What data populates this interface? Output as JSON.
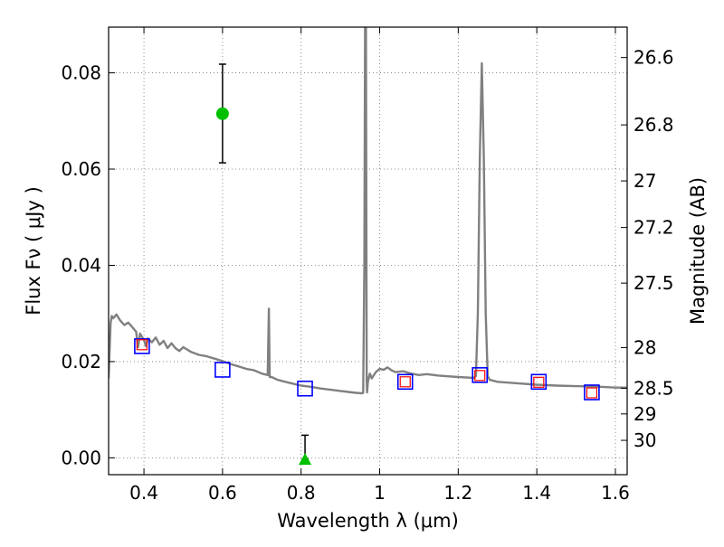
{
  "chart_data": {
    "type": "line",
    "title": "",
    "xlabel": "Wavelength  λ (μm)",
    "ylabel": "Flux  Fν  ( μJy )",
    "ylabel_right": "Magnitude (AB)",
    "xlim": [
      0.31,
      1.63
    ],
    "ylim": [
      -0.0035,
      0.0895
    ],
    "grid": true,
    "x_ticks": [
      0.4,
      0.6,
      0.8,
      1.0,
      1.2,
      1.4,
      1.6
    ],
    "x_tick_labels": [
      "0.4",
      "0.6",
      "0.8",
      "1",
      "1.2",
      "1.4",
      "1.6"
    ],
    "y_ticks": [
      0.0,
      0.02,
      0.04,
      0.06,
      0.08
    ],
    "y_tick_labels": [
      "0.00",
      "0.02",
      "0.04",
      "0.06",
      "0.08"
    ],
    "mag_ticks": [
      26.6,
      26.8,
      27.0,
      27.2,
      27.5,
      28.0,
      28.5,
      29.0,
      30.0
    ],
    "mag_tick_labels": [
      "26.6",
      "26.8",
      "27",
      "27.2",
      "27.5",
      "28",
      "28.5",
      "29",
      "30"
    ],
    "colors": {
      "model": "#808080",
      "model_points": "#0000ff",
      "observed_points": "#ff0000",
      "detection": "#00c000",
      "grid": "#b0b0b0"
    },
    "series": [
      {
        "name": "SED model",
        "x": [
          0.31,
          0.315,
          0.318,
          0.322,
          0.33,
          0.34,
          0.35,
          0.36,
          0.37,
          0.38,
          0.385,
          0.39,
          0.4,
          0.405,
          0.41,
          0.42,
          0.43,
          0.44,
          0.45,
          0.46,
          0.47,
          0.48,
          0.49,
          0.5,
          0.52,
          0.54,
          0.56,
          0.58,
          0.6,
          0.62,
          0.64,
          0.66,
          0.68,
          0.7,
          0.715,
          0.718,
          0.72,
          0.722,
          0.725,
          0.74,
          0.76,
          0.78,
          0.8,
          0.82,
          0.85,
          0.88,
          0.9,
          0.92,
          0.94,
          0.955,
          0.958,
          0.961,
          0.963,
          0.965,
          0.967,
          0.968,
          0.97,
          0.975,
          0.98,
          0.99,
          1.0,
          1.01,
          1.02,
          1.03,
          1.04,
          1.06,
          1.08,
          1.1,
          1.12,
          1.15,
          1.2,
          1.24,
          1.245,
          1.25,
          1.255,
          1.26,
          1.265,
          1.27,
          1.275,
          1.28,
          1.3,
          1.35,
          1.4,
          1.45,
          1.5,
          1.55,
          1.6,
          1.63
        ],
        "values": [
          0.0165,
          0.028,
          0.0295,
          0.029,
          0.0298,
          0.0285,
          0.0276,
          0.0281,
          0.0272,
          0.0262,
          0.023,
          0.0258,
          0.0245,
          0.0232,
          0.0248,
          0.024,
          0.025,
          0.0235,
          0.0243,
          0.0228,
          0.0238,
          0.0228,
          0.0222,
          0.023,
          0.022,
          0.0214,
          0.0211,
          0.0206,
          0.0201,
          0.0195,
          0.019,
          0.0185,
          0.0182,
          0.0175,
          0.0172,
          0.031,
          0.0168,
          0.0168,
          0.0168,
          0.0162,
          0.0158,
          0.0154,
          0.015,
          0.0148,
          0.0144,
          0.0141,
          0.0139,
          0.0137,
          0.0135,
          0.0134,
          0.0135,
          0.04,
          0.095,
          0.095,
          0.016,
          0.0136,
          0.0158,
          0.0175,
          0.0165,
          0.0178,
          0.0185,
          0.0183,
          0.0188,
          0.0182,
          0.0178,
          0.018,
          0.0175,
          0.0172,
          0.0174,
          0.0171,
          0.0168,
          0.0166,
          0.017,
          0.03,
          0.0625,
          0.082,
          0.0625,
          0.03,
          0.017,
          0.0162,
          0.0158,
          0.0155,
          0.0152,
          0.015,
          0.0149,
          0.0148,
          0.0146,
          0.0146
        ]
      }
    ],
    "model_points": {
      "name": "model photometry",
      "x": [
        0.395,
        0.6,
        0.81,
        1.065,
        1.255,
        1.405,
        1.54
      ],
      "values": [
        0.0232,
        0.0183,
        0.0144,
        0.0158,
        0.0172,
        0.0158,
        0.0136
      ]
    },
    "observed_points": {
      "name": "observed photometry",
      "x": [
        0.395,
        1.065,
        1.255,
        1.405,
        1.54
      ],
      "values": [
        0.0235,
        0.0158,
        0.0171,
        0.0157,
        0.0135
      ]
    },
    "detections": [
      {
        "name": "detection",
        "x": 0.6,
        "value": 0.0715,
        "err_low": 0.0613,
        "err_high": 0.0818,
        "marker": "circle"
      },
      {
        "name": "upper limit",
        "x": 0.81,
        "value": -0.0003,
        "err_low": -0.0003,
        "err_high": 0.0047,
        "marker": "triangle"
      }
    ]
  }
}
